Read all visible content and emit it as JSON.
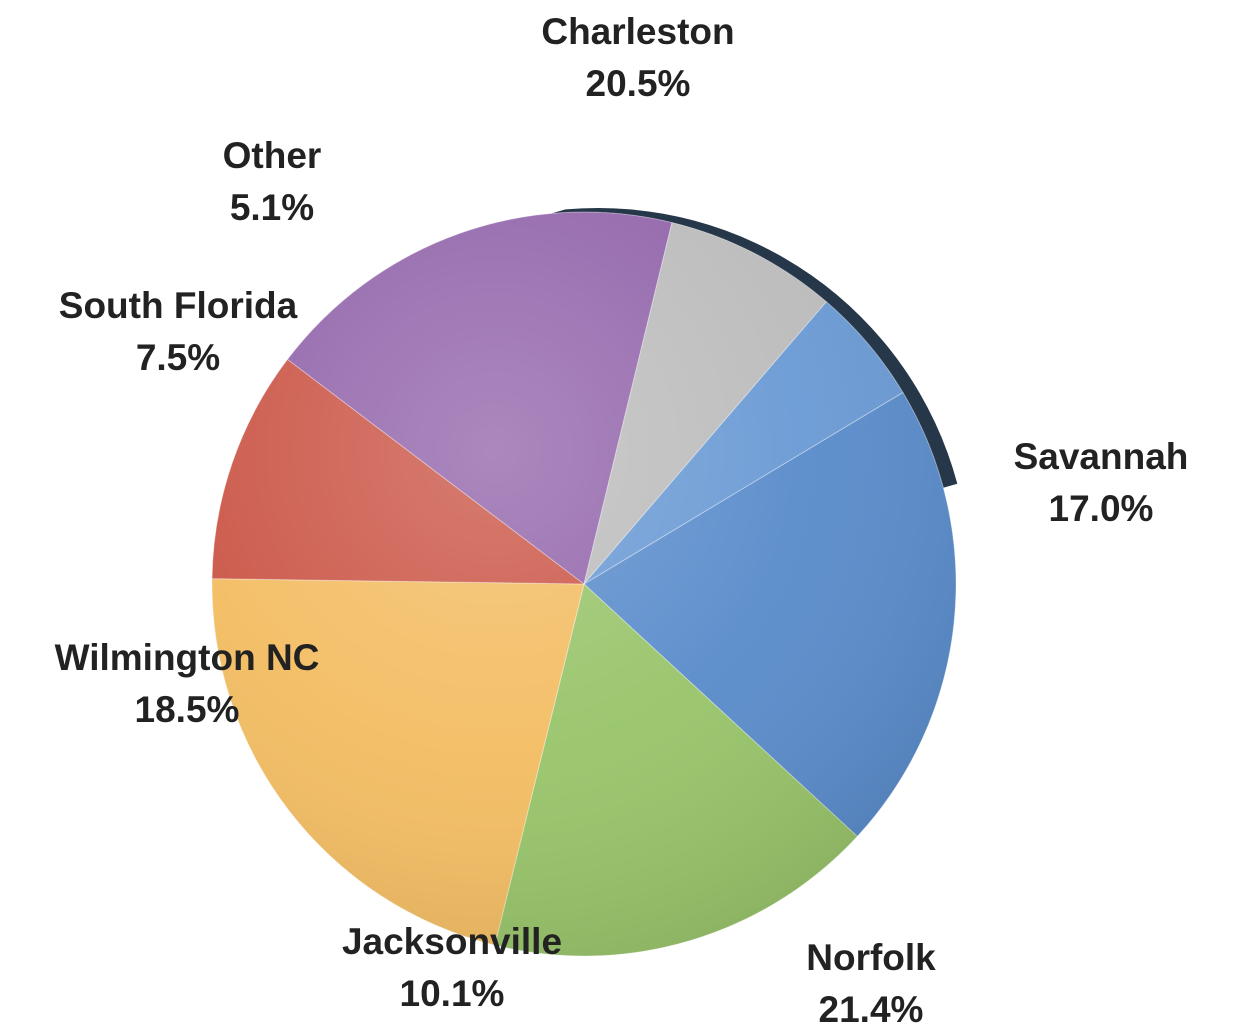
{
  "chart_data": {
    "type": "pie",
    "title": "",
    "slices": [
      {
        "label": "Charleston",
        "value": 20.5,
        "display": "20.5%",
        "color": "#5a8ccb"
      },
      {
        "label": "Savannah",
        "value": 17.0,
        "display": "17.0%",
        "color": "#98c46a"
      },
      {
        "label": "Norfolk",
        "value": 21.4,
        "display": "21.4%",
        "color": "#f3bd63"
      },
      {
        "label": "Jacksonville",
        "value": 10.1,
        "display": "10.1%",
        "color": "#cb5748"
      },
      {
        "label": "Wilmington NC",
        "value": 18.5,
        "display": "18.5%",
        "color": "#9366ab"
      },
      {
        "label": "South Florida",
        "value": 7.5,
        "display": "7.5%",
        "color": "#bcbcbc"
      },
      {
        "label": "Other",
        "value": 5.1,
        "display": "5.1%",
        "color": "#6a9ad4"
      }
    ],
    "start_angle_deg": 59,
    "direction": "clockwise",
    "legend": "none",
    "data_labels": "outside",
    "style": "3d-shaded"
  }
}
